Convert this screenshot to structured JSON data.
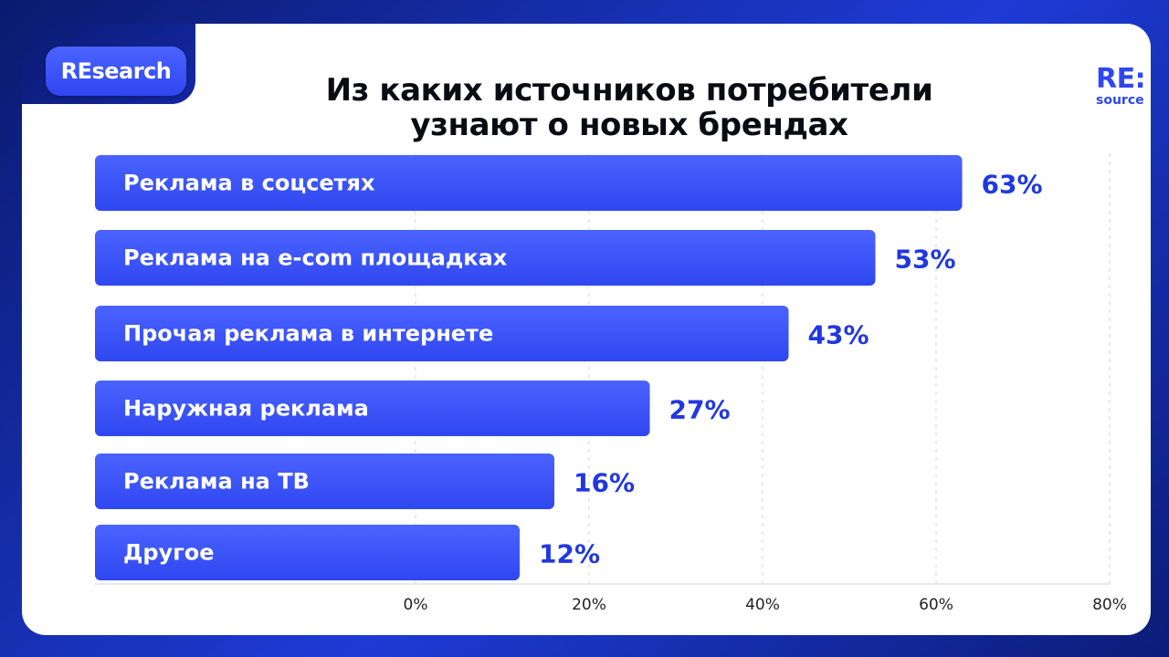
{
  "badge": "REsearch",
  "logo": {
    "main": "RE:",
    "sub": "source"
  },
  "title": "Из каких источников потребители узнают о новых брендах",
  "colors": {
    "bar": "#2f47f0",
    "bar_light": "#4a63ff",
    "value_text": "#2038e0",
    "axis_text": "#222222"
  },
  "chart_data": {
    "type": "bar",
    "orientation": "horizontal",
    "categories": [
      "Реклама в соцсетях",
      "Реклама на e-com площадках",
      "Прочая реклама в интернете",
      "Наружная реклама",
      "Реклама на ТВ",
      "Другое"
    ],
    "values": [
      63,
      53,
      43,
      27,
      16,
      12
    ],
    "value_labels": [
      "63%",
      "53%",
      "43%",
      "27%",
      "16%",
      "12%"
    ],
    "x_ticks": [
      "0%",
      "20%",
      "40%",
      "60%",
      "80%"
    ],
    "grid": true
  }
}
